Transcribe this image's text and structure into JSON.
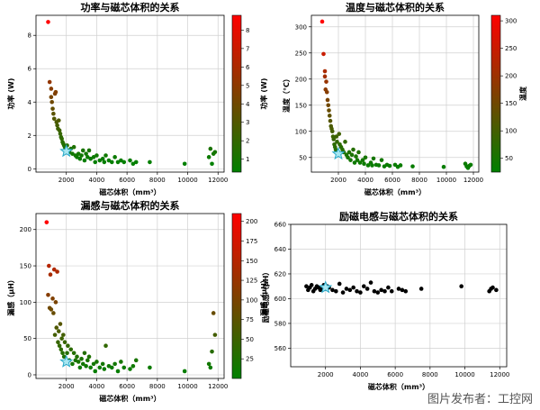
{
  "watermark": "图片发布者：工控网",
  "chart_data": [
    {
      "type": "scatter",
      "title": "功率与磁芯体积的关系",
      "xlabel": "磁芯体积（mm³）",
      "ylabel": "功率 (W)",
      "colorbar_label": "功率 (W)",
      "xlim": [
        0,
        12400
      ],
      "ylim": [
        -0.2,
        9.2
      ],
      "xticks": [
        2000,
        4000,
        6000,
        8000,
        10000,
        12000
      ],
      "yticks": [
        0,
        2,
        4,
        6,
        8
      ],
      "cbar_range": [
        0.3,
        8.8
      ],
      "cbar_ticks": [
        1,
        2,
        3,
        4,
        5,
        6,
        7,
        8
      ],
      "grid": true,
      "colormap": [
        "#008000",
        "#ff0000"
      ],
      "x": [
        800,
        900,
        1000,
        1000,
        1050,
        1100,
        1150,
        1200,
        1250,
        1300,
        1350,
        1400,
        1450,
        1500,
        1550,
        1600,
        1650,
        1700,
        1750,
        1800,
        1850,
        1900,
        1950,
        2050,
        2100,
        2200,
        2300,
        2400,
        2500,
        2600,
        2700,
        2800,
        2900,
        3000,
        3100,
        3200,
        3300,
        3400,
        3500,
        3600,
        3800,
        3900,
        4000,
        4200,
        4400,
        4500,
        4600,
        4800,
        5000,
        5200,
        5400,
        5600,
        5800,
        6200,
        6400,
        6600,
        7500,
        9800,
        11400,
        11500,
        11600,
        11700,
        11800
      ],
      "y": [
        8.8,
        5.2,
        4.8,
        4.3,
        4.0,
        3.6,
        3.3,
        3.0,
        4.5,
        4.6,
        2.8,
        2.6,
        2.4,
        2.9,
        2.3,
        2.1,
        1.9,
        1.8,
        1.6,
        1.5,
        1.4,
        1.3,
        1.2,
        1.4,
        1.1,
        1.0,
        1.2,
        0.9,
        1.3,
        0.8,
        0.7,
        0.9,
        0.6,
        0.8,
        1.1,
        0.5,
        0.9,
        0.7,
        1.1,
        0.6,
        0.7,
        0.4,
        0.8,
        0.5,
        0.6,
        0.4,
        0.8,
        0.5,
        0.4,
        0.7,
        0.4,
        0.5,
        0.4,
        0.5,
        0.3,
        0.4,
        0.4,
        0.3,
        0.7,
        1.2,
        0.3,
        0.9,
        1.0
      ],
      "marker": {
        "x": 2000,
        "y": 1.05
      }
    },
    {
      "type": "scatter",
      "title": "温度与磁芯体积的关系",
      "xlabel": "磁芯体积（mm³）",
      "ylabel": "温度（°C）",
      "colorbar_label": "温度",
      "xlim": [
        0,
        12400
      ],
      "ylim": [
        22,
        322
      ],
      "xticks": [
        2000,
        4000,
        6000,
        8000,
        10000,
        12000
      ],
      "yticks": [
        50,
        100,
        150,
        200,
        250,
        300
      ],
      "cbar_range": [
        25,
        310
      ],
      "cbar_ticks": [
        50,
        100,
        150,
        200,
        250,
        300
      ],
      "grid": true,
      "colormap": [
        "#008000",
        "#ff0000"
      ],
      "x": [
        800,
        900,
        1000,
        1000,
        1050,
        1100,
        1150,
        1200,
        1250,
        1300,
        1350,
        1400,
        1450,
        1500,
        1550,
        1600,
        1650,
        1700,
        1750,
        1800,
        1850,
        1900,
        1950,
        2050,
        2100,
        2200,
        2300,
        2400,
        2500,
        2600,
        2700,
        2800,
        2900,
        3000,
        3100,
        3200,
        3300,
        3400,
        3500,
        3600,
        3800,
        3900,
        4000,
        4200,
        4400,
        4500,
        4600,
        4800,
        5000,
        5200,
        5400,
        5600,
        5800,
        6200,
        6400,
        6600,
        7500,
        9800,
        11400,
        11500,
        11600,
        11700,
        11800
      ],
      "y": [
        310,
        248,
        215,
        205,
        180,
        195,
        175,
        160,
        150,
        140,
        130,
        120,
        110,
        105,
        100,
        90,
        85,
        75,
        70,
        65,
        90,
        80,
        60,
        95,
        75,
        70,
        65,
        60,
        80,
        55,
        50,
        60,
        45,
        55,
        65,
        40,
        52,
        45,
        60,
        40,
        45,
        38,
        50,
        35,
        40,
        35,
        48,
        36,
        35,
        45,
        33,
        36,
        34,
        36,
        32,
        35,
        33,
        32,
        38,
        33,
        30,
        34,
        36
      ],
      "marker": {
        "x": 2000,
        "y": 57
      }
    },
    {
      "type": "scatter",
      "title": "漏感与磁芯体积的关系",
      "xlabel": "磁芯体积（mm³）",
      "ylabel": "漏感（μH）",
      "colorbar_label": "漏感（μH）",
      "xlim": [
        0,
        12400
      ],
      "ylim": [
        -5,
        222
      ],
      "xticks": [
        2000,
        4000,
        6000,
        8000,
        10000,
        12000
      ],
      "yticks": [
        0,
        50,
        100,
        150,
        200
      ],
      "cbar_range": [
        0,
        210
      ],
      "cbar_ticks": [
        25,
        50,
        75,
        100,
        125,
        150,
        175,
        200
      ],
      "grid": true,
      "colormap": [
        "#008000",
        "#ff0000"
      ],
      "x": [
        700,
        800,
        850,
        900,
        950,
        1000,
        1100,
        1150,
        1200,
        1250,
        1300,
        1350,
        1400,
        1450,
        1500,
        1550,
        1600,
        1650,
        1700,
        1750,
        1800,
        1850,
        1900,
        2050,
        2100,
        2200,
        2300,
        2400,
        2500,
        2600,
        2700,
        2800,
        2900,
        3000,
        3100,
        3200,
        3300,
        3400,
        3500,
        3600,
        3800,
        3900,
        4000,
        4200,
        4400,
        4500,
        4600,
        4800,
        5000,
        5200,
        5400,
        5600,
        5800,
        6200,
        6400,
        6600,
        7500,
        9800,
        11400,
        11500,
        11600,
        11700,
        11800
      ],
      "y": [
        210,
        110,
        150,
        92,
        138,
        90,
        105,
        85,
        145,
        55,
        100,
        65,
        142,
        45,
        60,
        40,
        70,
        35,
        50,
        30,
        55,
        25,
        45,
        30,
        40,
        20,
        35,
        15,
        30,
        20,
        25,
        18,
        10,
        22,
        15,
        30,
        12,
        20,
        25,
        10,
        15,
        5,
        18,
        10,
        15,
        8,
        40,
        12,
        10,
        15,
        5,
        18,
        10,
        8,
        12,
        20,
        10,
        5,
        15,
        10,
        32,
        85,
        55
      ],
      "marker": {
        "x": 2000,
        "y": 18
      }
    },
    {
      "type": "scatter",
      "title": "励磁电感与磁芯体积的关系",
      "xlabel": "磁芯体积（mm³）",
      "ylabel": "励磁电感（μH）",
      "xlim": [
        0,
        12400
      ],
      "ylim": [
        545,
        660
      ],
      "xticks": [
        2000,
        4000,
        6000,
        8000,
        10000,
        12000
      ],
      "yticks": [
        560,
        580,
        600,
        620,
        640,
        660
      ],
      "grid": true,
      "point_color": "#000000",
      "x": [
        900,
        1000,
        1100,
        1200,
        1300,
        1400,
        1500,
        1600,
        1700,
        1800,
        1900,
        2000,
        2100,
        2200,
        2400,
        2600,
        2800,
        3000,
        3200,
        3400,
        3600,
        3800,
        4000,
        4200,
        4400,
        4600,
        4800,
        5000,
        5200,
        5400,
        5600,
        5800,
        6200,
        6400,
        6600,
        7500,
        9800,
        11400,
        11500,
        11600,
        11800
      ],
      "y": [
        610,
        607,
        609,
        611,
        606,
        608,
        610,
        609,
        607,
        608,
        611,
        608,
        610,
        609,
        607,
        606,
        612,
        605,
        608,
        607,
        609,
        606,
        605,
        610,
        608,
        613,
        606,
        605,
        607,
        606,
        609,
        606,
        608,
        607,
        606,
        608,
        610,
        606,
        608,
        609,
        607
      ],
      "marker": {
        "x": 2000,
        "y": 609
      }
    }
  ]
}
